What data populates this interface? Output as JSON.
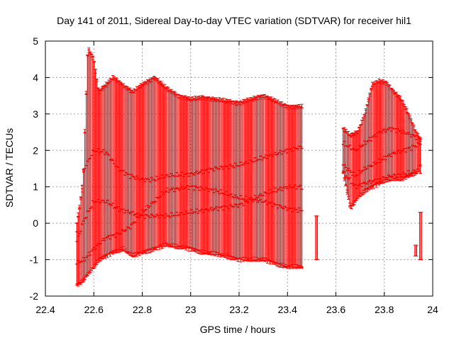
{
  "chart_data": {
    "type": "scatter",
    "title": "Day 141 of 2011, Sidereal Day-to-day VTEC variation (SDTVAR) for receiver hil1",
    "xlabel": "GPS time / hours",
    "ylabel": "SDTVAR / TECUs",
    "xlim": [
      22.4,
      24
    ],
    "ylim": [
      -2,
      5
    ],
    "xticks": [
      "22.4",
      "22.6",
      "22.8",
      "23",
      "23.2",
      "23.4",
      "23.6",
      "23.8",
      "24"
    ],
    "yticks": [
      "-2",
      "-1",
      "0",
      "1",
      "2",
      "3",
      "4",
      "5"
    ],
    "grid": true,
    "error_bars": true,
    "series_color": "#ff0000",
    "series": [
      {
        "name": "mean",
        "segments": [
          {
            "x_start": 22.53,
            "x_end": 23.46,
            "points": [
              [
                22.53,
                -0.5
              ],
              [
                22.56,
                0.1
              ],
              [
                22.6,
                0.6
              ],
              [
                22.65,
                0.6
              ],
              [
                22.7,
                0.4
              ],
              [
                22.75,
                0.3
              ],
              [
                22.8,
                0.2
              ],
              [
                22.9,
                0.2
              ],
              [
                23.0,
                0.3
              ],
              [
                23.1,
                0.4
              ],
              [
                23.2,
                0.5
              ],
              [
                23.3,
                0.8
              ],
              [
                23.4,
                1.0
              ],
              [
                23.46,
                1.0
              ]
            ]
          },
          {
            "x_start": 23.63,
            "x_end": 23.95,
            "points": [
              [
                23.63,
                1.6
              ],
              [
                23.68,
                1.3
              ],
              [
                23.72,
                1.5
              ],
              [
                23.78,
                1.7
              ],
              [
                23.83,
                1.9
              ],
              [
                23.88,
                2.0
              ],
              [
                23.92,
                2.1
              ],
              [
                23.95,
                2.2
              ]
            ]
          }
        ]
      },
      {
        "name": "upper",
        "segments": [
          {
            "x_start": 22.53,
            "x_end": 23.46,
            "points": [
              [
                22.53,
                -0.2
              ],
              [
                22.56,
                1.5
              ],
              [
                22.6,
                2.0
              ],
              [
                22.65,
                1.95
              ],
              [
                22.7,
                1.5
              ],
              [
                22.75,
                1.3
              ],
              [
                22.8,
                1.2
              ],
              [
                22.85,
                1.2
              ],
              [
                22.9,
                1.3
              ],
              [
                23.0,
                1.35
              ],
              [
                23.1,
                1.5
              ],
              [
                23.2,
                1.6
              ],
              [
                23.3,
                1.8
              ],
              [
                23.4,
                2.0
              ],
              [
                23.46,
                2.1
              ]
            ]
          },
          {
            "x_start": 23.63,
            "x_end": 23.95,
            "points": [
              [
                23.63,
                2.2
              ],
              [
                23.68,
                2.0
              ],
              [
                23.72,
                2.2
              ],
              [
                23.78,
                2.5
              ],
              [
                23.83,
                2.6
              ],
              [
                23.88,
                2.5
              ],
              [
                23.92,
                2.4
              ],
              [
                23.95,
                2.3
              ]
            ]
          }
        ]
      },
      {
        "name": "lower",
        "segments": [
          {
            "x_start": 22.53,
            "x_end": 23.46,
            "points": [
              [
                22.53,
                -1.1
              ],
              [
                22.56,
                -1.0
              ],
              [
                22.6,
                -0.7
              ],
              [
                22.65,
                -0.4
              ],
              [
                22.7,
                -0.3
              ],
              [
                22.75,
                -0.1
              ],
              [
                22.8,
                0.3
              ],
              [
                22.85,
                0.6
              ],
              [
                22.9,
                0.9
              ],
              [
                23.0,
                1.0
              ],
              [
                23.1,
                0.9
              ],
              [
                23.2,
                0.7
              ],
              [
                23.3,
                0.6
              ],
              [
                23.4,
                0.4
              ],
              [
                23.46,
                0.35
              ]
            ]
          },
          {
            "x_start": 23.63,
            "x_end": 23.95,
            "points": [
              [
                23.63,
                1.4
              ],
              [
                23.68,
                1.0
              ],
              [
                23.72,
                1.1
              ],
              [
                23.78,
                1.2
              ],
              [
                23.83,
                1.3
              ],
              [
                23.88,
                1.35
              ],
              [
                23.92,
                1.4
              ],
              [
                23.95,
                1.4
              ]
            ]
          }
        ]
      }
    ],
    "error_envelope": {
      "segments": [
        {
          "points": [
            [
              22.53,
              -1.7,
              0.0
            ],
            [
              22.555,
              -1.6,
              1.0
            ],
            [
              22.575,
              -1.4,
              4.8
            ],
            [
              22.6,
              -1.2,
              4.5
            ],
            [
              22.62,
              -1.0,
              3.6
            ],
            [
              22.65,
              -0.9,
              3.8
            ],
            [
              22.68,
              -0.8,
              4.0
            ],
            [
              22.72,
              -0.7,
              3.8
            ],
            [
              22.76,
              -0.9,
              3.6
            ],
            [
              22.8,
              -0.8,
              3.8
            ],
            [
              22.85,
              -0.7,
              4.0
            ],
            [
              22.9,
              -0.6,
              3.7
            ],
            [
              22.95,
              -0.65,
              3.5
            ],
            [
              23.0,
              -0.7,
              3.4
            ],
            [
              23.05,
              -0.8,
              3.45
            ],
            [
              23.1,
              -0.85,
              3.4
            ],
            [
              23.15,
              -0.9,
              3.35
            ],
            [
              23.2,
              -1.0,
              3.3
            ],
            [
              23.25,
              -1.0,
              3.4
            ],
            [
              23.3,
              -1.0,
              3.5
            ],
            [
              23.35,
              -1.1,
              3.35
            ],
            [
              23.4,
              -1.2,
              3.2
            ],
            [
              23.46,
              -1.2,
              3.2
            ]
          ]
        },
        {
          "points": [
            [
              23.63,
              1.4,
              2.6
            ],
            [
              23.66,
              0.4,
              2.4
            ],
            [
              23.69,
              0.7,
              2.5
            ],
            [
              23.72,
              0.9,
              3.0
            ],
            [
              23.75,
              1.0,
              3.8
            ],
            [
              23.78,
              1.1,
              3.9
            ],
            [
              23.81,
              1.2,
              3.85
            ],
            [
              23.84,
              1.2,
              3.6
            ],
            [
              23.87,
              1.2,
              3.4
            ],
            [
              23.9,
              1.3,
              3.0
            ],
            [
              23.93,
              1.4,
              2.5
            ],
            [
              23.95,
              1.6,
              2.3
            ]
          ]
        }
      ]
    },
    "isolated_points": [
      {
        "x": 23.52,
        "low": -1.0,
        "high": 0.2
      },
      {
        "x": 23.95,
        "low": -1.0,
        "high": 0.3
      },
      {
        "x": 23.93,
        "low": -0.9,
        "high": -0.6
      }
    ]
  }
}
